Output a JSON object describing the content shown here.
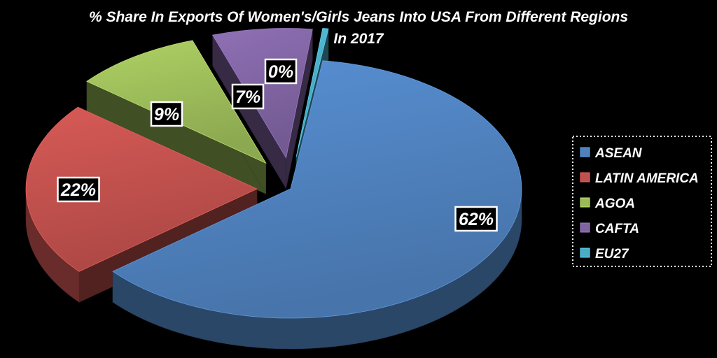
{
  "chart_data": {
    "type": "pie",
    "title": "% Share In Exports Of Women's/Girls Jeans Into USA From Different Regions",
    "subtitle": "In 2017",
    "categories": [
      "ASEAN",
      "LATIN AMERICA",
      "AGOA",
      "CAFTA",
      "EU27"
    ],
    "values": [
      62,
      22,
      9,
      7,
      0.4
    ],
    "data_labels": [
      "62%",
      "22%",
      "9%",
      "7%",
      "0%"
    ],
    "colors": [
      "#4F81BD",
      "#C0504D",
      "#9BBB59",
      "#8064A2",
      "#4BACC6"
    ],
    "background": "#000000",
    "style": "3d-exploded",
    "legend_position": "right",
    "grid": false
  }
}
